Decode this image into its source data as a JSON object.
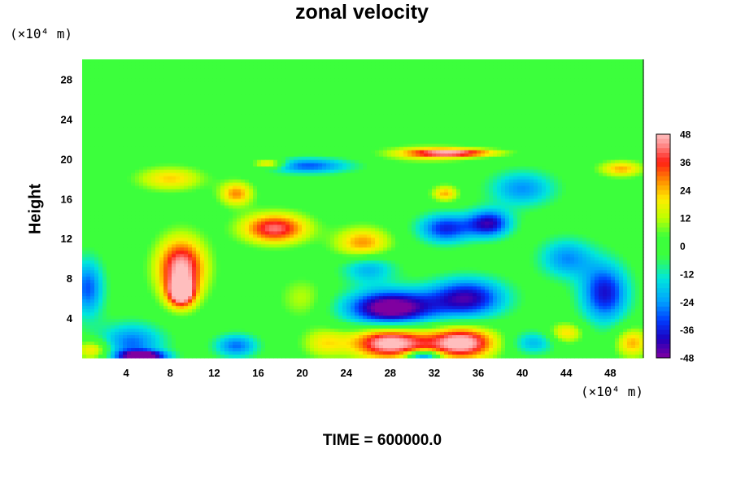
{
  "chart_data": {
    "type": "heatmap",
    "title": "zonal velocity",
    "ylabel": "Height",
    "xlabel": "",
    "x_unit_label": "(×10⁴ m)",
    "y_unit_label": "(×10⁴ m)",
    "footer": "TIME = 600000.0",
    "xlim": [
      0,
      51
    ],
    "ylim": [
      0,
      30
    ],
    "x_ticks": [
      4,
      8,
      12,
      16,
      20,
      24,
      28,
      32,
      36,
      40,
      44,
      48
    ],
    "y_ticks": [
      4,
      8,
      12,
      16,
      20,
      24,
      28
    ],
    "colorbar": {
      "min": -48,
      "max": 48,
      "ticks": [
        48,
        36,
        24,
        12,
        0,
        -12,
        -24,
        -36,
        -48
      ]
    },
    "features": [
      {
        "x": 9,
        "y": 9,
        "value": 48,
        "sx": 2.2,
        "sy": 3.0
      },
      {
        "x": 9,
        "y": 6.5,
        "value": 45,
        "sx": 1.2,
        "sy": 1.4
      },
      {
        "x": 17.5,
        "y": 13,
        "value": 42,
        "sx": 3.0,
        "sy": 1.5
      },
      {
        "x": 25.5,
        "y": 11.5,
        "value": 28,
        "sx": 2.5,
        "sy": 1.6
      },
      {
        "x": 28,
        "y": 1.5,
        "value": 52,
        "sx": 3.5,
        "sy": 1.6
      },
      {
        "x": 34.5,
        "y": 1.5,
        "value": 52,
        "sx": 3.0,
        "sy": 1.6
      },
      {
        "x": 28,
        "y": 5,
        "value": -55,
        "sx": 4.0,
        "sy": 1.8
      },
      {
        "x": 35,
        "y": 6,
        "value": -42,
        "sx": 3.5,
        "sy": 2.0
      },
      {
        "x": 33,
        "y": 13,
        "value": -35,
        "sx": 2.5,
        "sy": 1.5
      },
      {
        "x": 37,
        "y": 13.5,
        "value": -40,
        "sx": 2.0,
        "sy": 1.4
      },
      {
        "x": 47.5,
        "y": 6.5,
        "value": -38,
        "sx": 2.2,
        "sy": 3.0
      },
      {
        "x": 0.5,
        "y": 7,
        "value": -30,
        "sx": 1.5,
        "sy": 3.0
      },
      {
        "x": 4.5,
        "y": 1.5,
        "value": -28,
        "sx": 3.0,
        "sy": 2.0
      },
      {
        "x": 5.5,
        "y": 0.2,
        "value": -48,
        "sx": 2.2,
        "sy": 0.5
      },
      {
        "x": 14,
        "y": 1.2,
        "value": -28,
        "sx": 2.0,
        "sy": 1.2
      },
      {
        "x": 26,
        "y": 9,
        "value": -22,
        "sx": 2.5,
        "sy": 1.5
      },
      {
        "x": 20.5,
        "y": 19.3,
        "value": -30,
        "sx": 4.0,
        "sy": 0.8
      },
      {
        "x": 40,
        "y": 17,
        "value": -25,
        "sx": 3.0,
        "sy": 1.8
      },
      {
        "x": 44,
        "y": 10,
        "value": -25,
        "sx": 2.5,
        "sy": 2.0
      },
      {
        "x": 8,
        "y": 18,
        "value": 22,
        "sx": 3.0,
        "sy": 1.2
      },
      {
        "x": 14,
        "y": 16.5,
        "value": 28,
        "sx": 1.5,
        "sy": 1.2
      },
      {
        "x": 17,
        "y": 19.5,
        "value": 30,
        "sx": 1.5,
        "sy": 0.5
      },
      {
        "x": 34,
        "y": 20.6,
        "value": 35,
        "sx": 4.0,
        "sy": 0.4
      },
      {
        "x": 31.5,
        "y": 20.5,
        "value": 20,
        "sx": 4.0,
        "sy": 0.8
      },
      {
        "x": 33,
        "y": 16.5,
        "value": 25,
        "sx": 1.2,
        "sy": 0.8
      },
      {
        "x": 49,
        "y": 19,
        "value": 25,
        "sx": 2.0,
        "sy": 0.8
      },
      {
        "x": 50,
        "y": 1.5,
        "value": 25,
        "sx": 1.5,
        "sy": 1.5
      },
      {
        "x": 44,
        "y": 2.5,
        "value": 22,
        "sx": 1.5,
        "sy": 1.0
      },
      {
        "x": 1,
        "y": 0.8,
        "value": 25,
        "sx": 1.5,
        "sy": 1.0
      },
      {
        "x": 22,
        "y": 1.5,
        "value": 18,
        "sx": 2.0,
        "sy": 1.5
      },
      {
        "x": 20,
        "y": 6,
        "value": 12,
        "sx": 2.0,
        "sy": 2.0
      },
      {
        "x": 41,
        "y": 1.5,
        "value": -20,
        "sx": 2.0,
        "sy": 1.2
      },
      {
        "x": 31,
        "y": 0.2,
        "value": -40,
        "sx": 1.5,
        "sy": 0.5
      }
    ]
  }
}
